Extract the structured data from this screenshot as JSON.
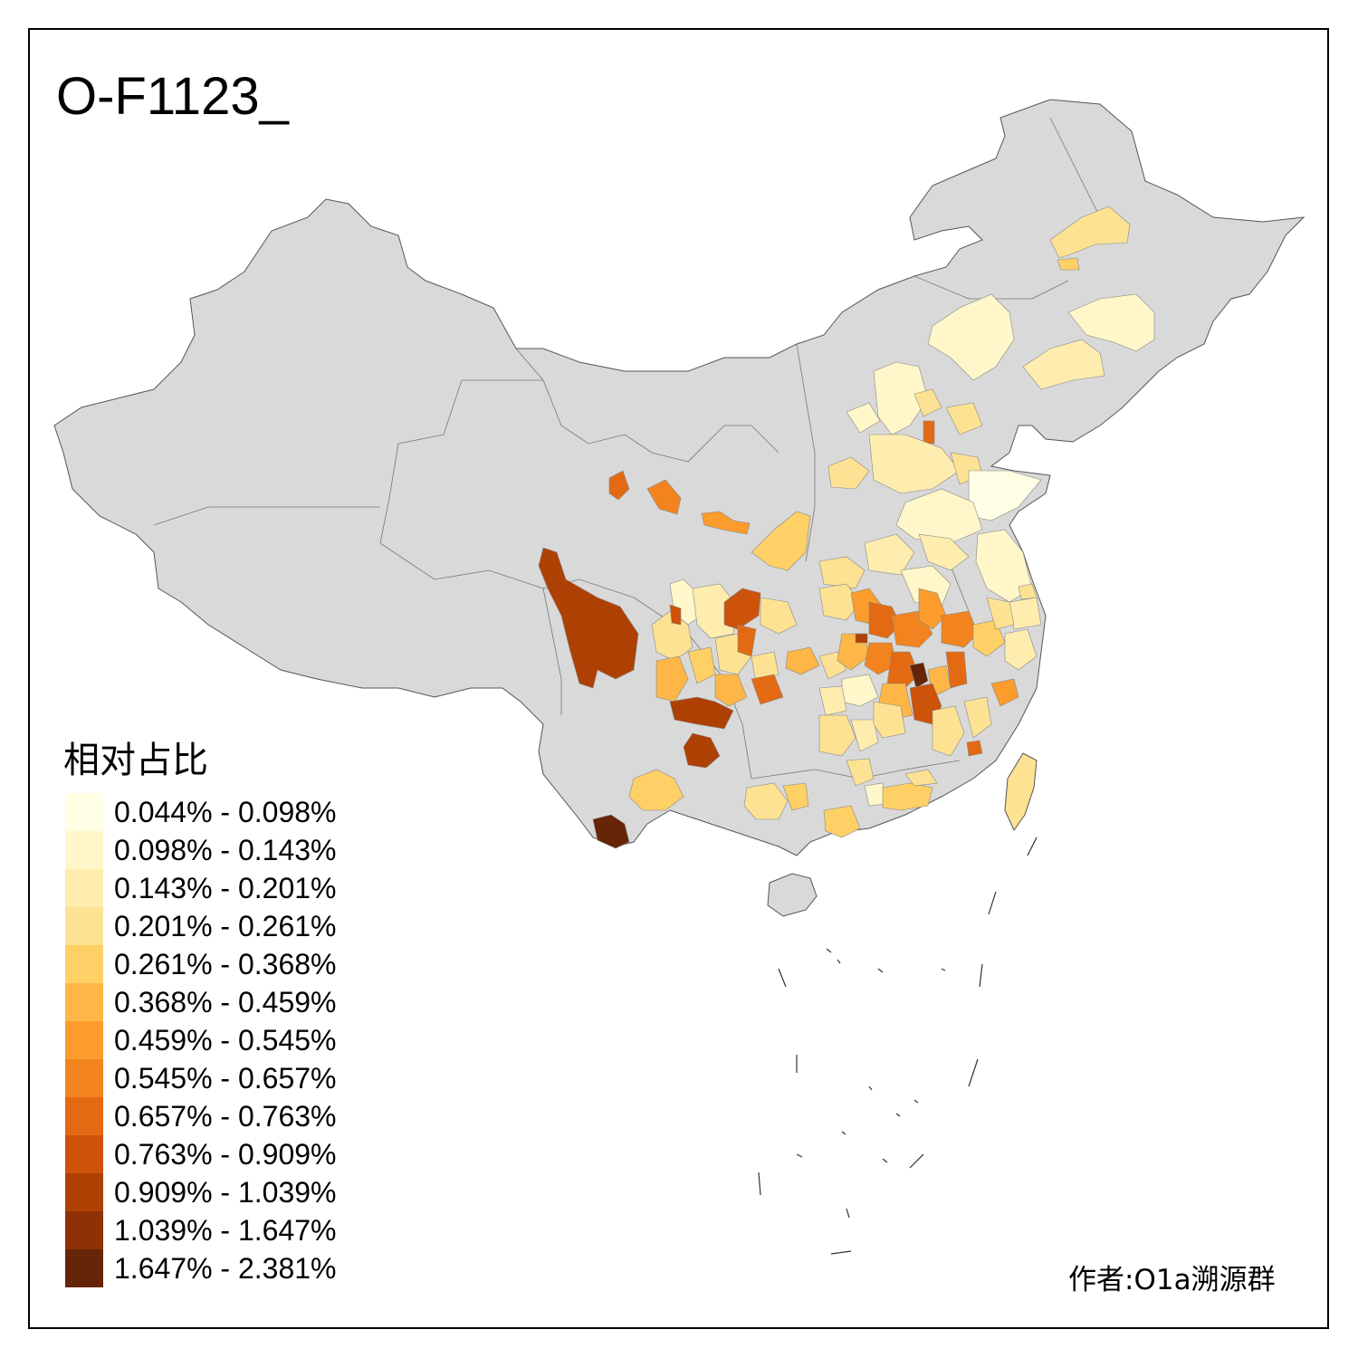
{
  "title": "O-F1123_",
  "legend": {
    "title": "相对占比",
    "items": [
      {
        "label": "0.044% - 0.098%",
        "color": "#FFFFE5"
      },
      {
        "label": "0.098% - 0.143%",
        "color": "#FFF7C9"
      },
      {
        "label": "0.143% - 0.201%",
        "color": "#FEEDAE"
      },
      {
        "label": "0.201% - 0.261%",
        "color": "#FEE293"
      },
      {
        "label": "0.261% - 0.368%",
        "color": "#FED065"
      },
      {
        "label": "0.368% - 0.459%",
        "color": "#FEB746"
      },
      {
        "label": "0.459% - 0.545%",
        "color": "#FB9C2C"
      },
      {
        "label": "0.545% - 0.657%",
        "color": "#F2831E"
      },
      {
        "label": "0.657% - 0.763%",
        "color": "#E36A12"
      },
      {
        "label": "0.763% - 0.909%",
        "color": "#CD520A"
      },
      {
        "label": "0.909% - 1.039%",
        "color": "#AF4004"
      },
      {
        "label": "1.039% - 1.647%",
        "color": "#8E3104"
      },
      {
        "label": "1.647% - 2.381%",
        "color": "#662506"
      }
    ]
  },
  "base_color": "#D9D9D9",
  "author": "作者:O1a溯源群"
}
